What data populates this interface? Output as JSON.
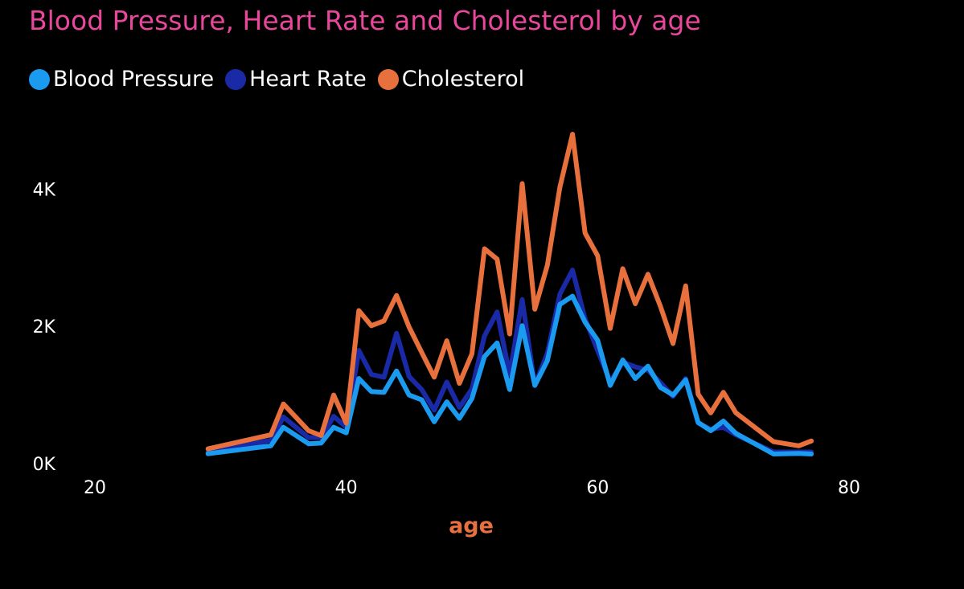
{
  "chart_data": {
    "type": "line",
    "title": "Blood Pressure, Heart Rate and Cholesterol by age",
    "xlabel": "age",
    "ylabel": "",
    "xlim": [
      20,
      80
    ],
    "ylim": [
      0,
      4800
    ],
    "x_ticks": [
      20,
      40,
      60,
      80
    ],
    "x_tick_labels": [
      "20",
      "40",
      "60",
      "80"
    ],
    "y_ticks": [
      0,
      2000,
      4000
    ],
    "y_tick_labels": [
      "0K",
      "2K",
      "4K"
    ],
    "grid": false,
    "legend_position": "top-left",
    "x": [
      29,
      34,
      35,
      37,
      38,
      39,
      40,
      41,
      42,
      43,
      44,
      45,
      46,
      47,
      48,
      49,
      50,
      51,
      52,
      53,
      54,
      55,
      56,
      57,
      58,
      59,
      60,
      61,
      62,
      63,
      64,
      65,
      66,
      67,
      68,
      69,
      70,
      71,
      74,
      76,
      77
    ],
    "series": [
      {
        "name": "Blood Pressure",
        "color": "#1a9bf0",
        "values": [
          145,
          260,
          530,
          290,
          300,
          530,
          450,
          1240,
          1050,
          1040,
          1350,
          1000,
          930,
          610,
          900,
          660,
          950,
          1560,
          1760,
          1080,
          2010,
          1140,
          1500,
          2320,
          2440,
          2060,
          1800,
          1140,
          1510,
          1240,
          1420,
          1110,
          1000,
          1220,
          600,
          480,
          620,
          440,
          140,
          150,
          140
        ]
      },
      {
        "name": "Heart Rate",
        "color": "#1a2aa6",
        "values": [
          170,
          340,
          680,
          380,
          380,
          690,
          530,
          1650,
          1300,
          1260,
          1900,
          1270,
          1080,
          780,
          1190,
          820,
          1090,
          1860,
          2210,
          1300,
          2390,
          1140,
          1610,
          2470,
          2820,
          2110,
          1650,
          1190,
          1480,
          1410,
          1360,
          1180,
          980,
          1240,
          590,
          500,
          530,
          420,
          170,
          170,
          170
        ]
      },
      {
        "name": "Cholesterol",
        "color": "#e8703d",
        "values": [
          215,
          420,
          870,
          480,
          410,
          1000,
          590,
          2230,
          2010,
          2080,
          2450,
          1990,
          1620,
          1260,
          1790,
          1170,
          1600,
          3130,
          2980,
          1890,
          4080,
          2250,
          2890,
          4030,
          4800,
          3360,
          3030,
          1970,
          2840,
          2330,
          2760,
          2290,
          1750,
          2590,
          1010,
          740,
          1040,
          740,
          320,
          260,
          330
        ]
      }
    ]
  }
}
